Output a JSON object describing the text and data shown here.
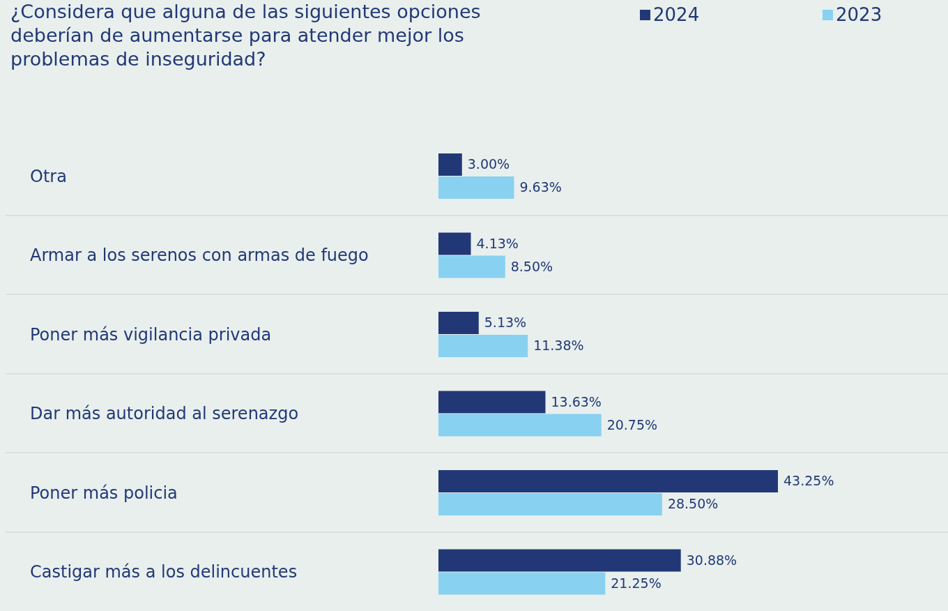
{
  "chart_data": {
    "type": "bar",
    "orientation": "horizontal",
    "title": "¿Considera que alguna de las siguientes opciones deberían de aumentarse para atender mejor los problemas de inseguridad?",
    "categories": [
      "Otra",
      "Armar a los serenos con armas de fuego",
      "Poner más vigilancia privada",
      "Dar más autoridad al serenazgo",
      "Poner más policia",
      "Castigar más a los delincuentes"
    ],
    "series": [
      {
        "name": "2024",
        "color": "#223876",
        "values": [
          3.0,
          4.13,
          5.13,
          13.63,
          43.25,
          30.88
        ],
        "value_labels": [
          "3.00%",
          "4.13%",
          "5.13%",
          "13.63%",
          "43.25%",
          "30.88%"
        ]
      },
      {
        "name": "2023",
        "color": "#88d1f0",
        "values": [
          9.63,
          8.5,
          11.38,
          20.75,
          28.5,
          21.25
        ],
        "value_labels": [
          "9.63%",
          "8.50%",
          "11.38%",
          "20.75%",
          "28.50%",
          "21.25%"
        ]
      }
    ],
    "legend": "top right",
    "grid": "y"
  }
}
